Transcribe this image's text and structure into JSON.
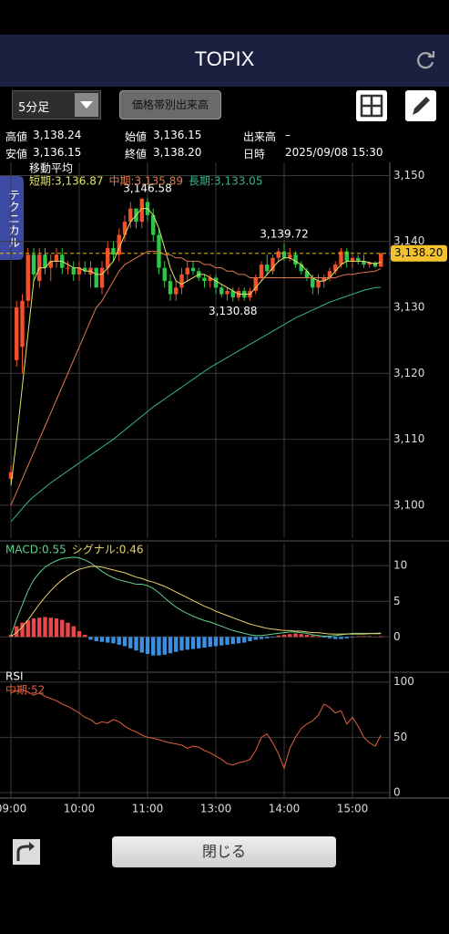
{
  "header": {
    "title": "TOPIX"
  },
  "toolbar": {
    "interval": "5分足",
    "volume_button": "価格帯別出来高"
  },
  "info": {
    "rows": [
      [
        "高値",
        "3,138.24",
        "始値",
        "3,136.15",
        "出来高",
        "–"
      ],
      [
        "安値",
        "3,136.15",
        "終値",
        "3,138.20",
        "日時",
        "2025/09/08 15:30"
      ]
    ]
  },
  "side_tab": "テクニカル",
  "close_button": "閉じる",
  "chart_data": [
    {
      "type": "candlestick",
      "title": "移動平均",
      "grid": true,
      "categories": [
        "09:00",
        null,
        null,
        null,
        null,
        null,
        null,
        null,
        null,
        null,
        null,
        null,
        "10:00",
        null,
        null,
        null,
        null,
        null,
        null,
        null,
        null,
        null,
        null,
        null,
        "11:00",
        null,
        null,
        null,
        null,
        null,
        null,
        null,
        null,
        null,
        null,
        null,
        "13:00",
        null,
        null,
        null,
        null,
        null,
        null,
        null,
        null,
        null,
        null,
        null,
        "14:00",
        null,
        null,
        null,
        null,
        null,
        null,
        null,
        null,
        null,
        null,
        null,
        "15:00",
        null,
        null,
        null,
        null,
        null
      ],
      "open": [
        3104,
        3122,
        3124,
        3131,
        3138,
        3134,
        3138,
        3136,
        3137,
        3138,
        3136,
        3136,
        3135,
        3136,
        3135,
        3136,
        3133,
        3136,
        3139,
        3138,
        3141,
        3143,
        3145,
        3143,
        3146,
        3144,
        3141,
        3136,
        3134,
        3132,
        3133,
        3135,
        3136,
        3135.5,
        3134.5,
        3134,
        3134.5,
        3133,
        3132,
        3132.5,
        3131.5,
        3132.5,
        3131.5,
        3132.5,
        3134.5,
        3136.5,
        3135.5,
        3137.5,
        3138.5,
        3137.5,
        3138,
        3136.5,
        3135.5,
        3134.5,
        3133,
        3134,
        3134.5,
        3135.5,
        3136.5,
        3138.5,
        3137,
        3137.5,
        3137,
        3136.5,
        3136.8,
        3136.15
      ],
      "high": [
        3106,
        3131,
        3132,
        3139,
        3139,
        3139,
        3139,
        3138,
        3139,
        3139,
        3137,
        3137,
        3137,
        3137,
        3137,
        3136,
        3137,
        3140,
        3140,
        3142,
        3144,
        3146,
        3145,
        3146.5,
        3146.58,
        3145,
        3142,
        3137,
        3135,
        3134,
        3136,
        3137,
        3137,
        3136,
        3135,
        3135,
        3135,
        3133.5,
        3133,
        3133,
        3133,
        3133,
        3133,
        3135,
        3137,
        3138,
        3138,
        3139,
        3139.72,
        3139,
        3138.5,
        3137,
        3136,
        3135,
        3135,
        3135,
        3136,
        3137,
        3139,
        3139,
        3138,
        3138,
        3138,
        3137,
        3137,
        3138.24
      ],
      "low": [
        3103,
        3121,
        3120,
        3130,
        3134,
        3133,
        3135,
        3134,
        3136,
        3135,
        3135,
        3134,
        3134,
        3135,
        3133,
        3133,
        3132,
        3135,
        3137,
        3137,
        3140,
        3142,
        3142,
        3142,
        3143,
        3140,
        3135,
        3133,
        3131,
        3131,
        3132,
        3134,
        3135,
        3134,
        3133,
        3133,
        3132,
        3131.5,
        3131,
        3130.88,
        3131,
        3131,
        3131,
        3132,
        3134,
        3135,
        3135,
        3137,
        3137,
        3137,
        3136,
        3135,
        3134,
        3132,
        3132,
        3133,
        3134,
        3135,
        3136,
        3136,
        3136,
        3136.5,
        3136,
        3136,
        3136,
        3136.15
      ],
      "close": [
        3105,
        3130,
        3131,
        3138,
        3135,
        3138,
        3136,
        3137,
        3138,
        3136,
        3136,
        3135,
        3136,
        3135.5,
        3136,
        3133,
        3136,
        3139,
        3138,
        3141,
        3143,
        3145,
        3143,
        3146.5,
        3144,
        3141,
        3136,
        3134,
        3132,
        3133,
        3135,
        3136,
        3135.5,
        3134.5,
        3134,
        3134.5,
        3133,
        3132,
        3132.5,
        3131.5,
        3132.5,
        3131.5,
        3132.5,
        3134.5,
        3136.5,
        3135.5,
        3137.5,
        3138.5,
        3137.5,
        3138,
        3136.5,
        3135.5,
        3134.5,
        3133,
        3134,
        3134.5,
        3135.5,
        3136.5,
        3138.5,
        3137,
        3137.5,
        3137,
        3136.5,
        3136.8,
        3136.2,
        3138.2
      ],
      "up_color": "#f4502a",
      "down_color": "#2dc84b",
      "series": [
        {
          "name": "短期:3,136.87",
          "color": "#e2e46a",
          "values": [
            3103,
            3110,
            3118,
            3126,
            3134,
            3136,
            3136,
            3137,
            3137,
            3137,
            3136.5,
            3136,
            3136,
            3135.5,
            3135.5,
            3135,
            3135,
            3136,
            3137,
            3139,
            3141,
            3143,
            3144,
            3145,
            3145,
            3144,
            3142,
            3139,
            3136,
            3134,
            3133.5,
            3134,
            3134.5,
            3135,
            3135,
            3134.5,
            3134,
            3133.5,
            3133,
            3132.5,
            3132,
            3132,
            3132,
            3133,
            3134,
            3135,
            3136,
            3137,
            3137.5,
            3137.5,
            3137,
            3136.5,
            3135.5,
            3134.5,
            3134,
            3134,
            3134.5,
            3135.5,
            3136.5,
            3137,
            3137,
            3137,
            3137,
            3136.8,
            3136.6,
            3136.87
          ]
        },
        {
          "name": "中期:3,135.89",
          "color": "#e0784e",
          "values": [
            3100,
            3102,
            3104,
            3106,
            3108,
            3110,
            3112,
            3114,
            3116,
            3118,
            3120,
            3122,
            3124,
            3126,
            3128,
            3130,
            3131,
            3132.5,
            3134,
            3135.5,
            3136.5,
            3137,
            3137.5,
            3138,
            3138.5,
            3138.5,
            3138.5,
            3138,
            3138,
            3137.5,
            3137.5,
            3137,
            3137,
            3137,
            3136.5,
            3136.5,
            3136,
            3136,
            3135.5,
            3135.5,
            3135,
            3135,
            3134.5,
            3134.5,
            3134.5,
            3134.5,
            3134.5,
            3134.5,
            3134.5,
            3134.5,
            3134.5,
            3134.5,
            3134.5,
            3134.5,
            3134.5,
            3134.5,
            3134.5,
            3134.5,
            3134.8,
            3135,
            3135,
            3135.2,
            3135.3,
            3135.4,
            3135.5,
            3135.89
          ]
        },
        {
          "name": "長期:3,133.05",
          "color": "#35b58d",
          "values": [
            3097.5,
            3098.5,
            3099.5,
            3100.5,
            3101.3,
            3102,
            3102.7,
            3103.4,
            3104,
            3104.6,
            3105.2,
            3105.8,
            3106.4,
            3107,
            3107.6,
            3108.2,
            3108.8,
            3109.4,
            3110,
            3110.7,
            3111.4,
            3112.1,
            3112.8,
            3113.5,
            3114.2,
            3114.9,
            3115.5,
            3116.1,
            3116.7,
            3117.3,
            3117.9,
            3118.5,
            3119.1,
            3119.7,
            3120.3,
            3120.9,
            3121.4,
            3121.9,
            3122.4,
            3122.9,
            3123.4,
            3123.9,
            3124.4,
            3124.9,
            3125.4,
            3125.9,
            3126.4,
            3126.9,
            3127.4,
            3127.9,
            3128.4,
            3128.8,
            3129.2,
            3129.6,
            3130,
            3130.4,
            3130.8,
            3131.1,
            3131.4,
            3131.7,
            3132,
            3132.3,
            3132.6,
            3132.8,
            3133,
            3133.05
          ]
        }
      ],
      "annotations": [
        {
          "value": 3146.58,
          "label": "3,146.58"
        },
        {
          "value": 3139.72,
          "label": "3,139.72"
        },
        {
          "value": 3130.88,
          "label": "3,130.88"
        }
      ],
      "last_price": {
        "value": 3138.2,
        "label": "3,138.20"
      },
      "ylim": [
        3095,
        3152
      ],
      "yticks": [
        {
          "value": 3100,
          "label": "3,100"
        },
        {
          "value": 3110,
          "label": "3,110"
        },
        {
          "value": 3120,
          "label": "3,120"
        },
        {
          "value": 3130,
          "label": "3,130"
        },
        {
          "value": 3140,
          "label": "3,140"
        },
        {
          "value": 3150,
          "label": "3,150"
        }
      ]
    },
    {
      "type": "macd",
      "grid": true,
      "series": [
        {
          "name": "MACD:0.55",
          "color": "#5fd08a",
          "values": [
            0.2,
            2.5,
            4.5,
            6.5,
            8,
            9,
            9.8,
            10.3,
            10.7,
            11,
            11.1,
            11.2,
            11.1,
            10.8,
            10.4,
            9.8,
            9.2,
            8.7,
            8.3,
            8,
            7.8,
            7.6,
            7.4,
            7.4,
            7.2,
            6.8,
            6.2,
            5.5,
            4.8,
            4.2,
            3.7,
            3.3,
            2.9,
            2.6,
            2.3,
            2.1,
            1.8,
            1.5,
            1.2,
            0.9,
            0.7,
            0.5,
            0.3,
            0.2,
            0.2,
            0.3,
            0.4,
            0.5,
            0.6,
            0.7,
            0.7,
            0.6,
            0.5,
            0.3,
            0.2,
            0.1,
            0.1,
            0.2,
            0.3,
            0.4,
            0.5,
            0.5,
            0.5,
            0.5,
            0.5,
            0.55
          ]
        },
        {
          "name": "シグナル:0.46",
          "color": "#e6d16a",
          "values": [
            0.1,
            0.6,
            1.4,
            2.4,
            3.5,
            4.6,
            5.6,
            6.5,
            7.3,
            8,
            8.6,
            9.1,
            9.5,
            9.7,
            9.9,
            9.9,
            9.8,
            9.6,
            9.4,
            9.2,
            9,
            8.7,
            8.4,
            8.2,
            7.9,
            7.7,
            7.4,
            7.1,
            6.7,
            6.3,
            5.9,
            5.5,
            5.1,
            4.7,
            4.3,
            4,
            3.6,
            3.3,
            3,
            2.7,
            2.4,
            2.1,
            1.8,
            1.6,
            1.4,
            1.2,
            1.1,
            1,
            0.9,
            0.9,
            0.8,
            0.8,
            0.7,
            0.6,
            0.6,
            0.5,
            0.4,
            0.4,
            0.4,
            0.4,
            0.4,
            0.4,
            0.4,
            0.45,
            0.45,
            0.46
          ]
        }
      ],
      "histogram": {
        "positive_color": "#e8484a",
        "negative_color": "#3b8fe0",
        "values": [
          0.3,
          1.5,
          2,
          2.3,
          2.6,
          2.7,
          2.8,
          2.7,
          2.6,
          2.4,
          2,
          1.5,
          0.8,
          0.3,
          -0.4,
          -0.6,
          -0.7,
          -0.8,
          -0.9,
          -1.1,
          -1.3,
          -1.6,
          -1.9,
          -2.2,
          -2.4,
          -2.6,
          -2.6,
          -2.5,
          -2.3,
          -2.1,
          -1.9,
          -1.8,
          -1.7,
          -1.6,
          -1.5,
          -1.4,
          -1.3,
          -1.2,
          -1.1,
          -1,
          -0.9,
          -0.8,
          -0.6,
          -0.4,
          -0.3,
          -0.2,
          -0.1,
          0.2,
          0.3,
          0.4,
          0.5,
          0.4,
          0.3,
          0.2,
          0.1,
          -0.1,
          -0.2,
          -0.3,
          -0.3,
          -0.2,
          -0.1,
          0.1,
          0.1,
          0.1,
          0.05,
          0.09
        ]
      },
      "ylim": [
        -4.7,
        13.1
      ],
      "yticks": [
        0,
        5,
        10
      ]
    },
    {
      "type": "line",
      "title": "RSI",
      "grid": true,
      "series": [
        {
          "name": "中期:52",
          "color": "#e0603e",
          "values": [
            90,
            92,
            93,
            91,
            88,
            90,
            87,
            85,
            83,
            80,
            78,
            75,
            72,
            68,
            66,
            62,
            64,
            63,
            66,
            64,
            60,
            57,
            55,
            52,
            50,
            49,
            48,
            46,
            45,
            44,
            43,
            40,
            42,
            41,
            38,
            36,
            33,
            30,
            26,
            25,
            27,
            28,
            30,
            38,
            50,
            53,
            45,
            35,
            22,
            40,
            50,
            58,
            62,
            65,
            70,
            80,
            77,
            72,
            74,
            62,
            68,
            60,
            50,
            45,
            42,
            52
          ]
        }
      ],
      "ylim": [
        -5,
        108
      ],
      "yticks": [
        0,
        50,
        100
      ]
    }
  ]
}
